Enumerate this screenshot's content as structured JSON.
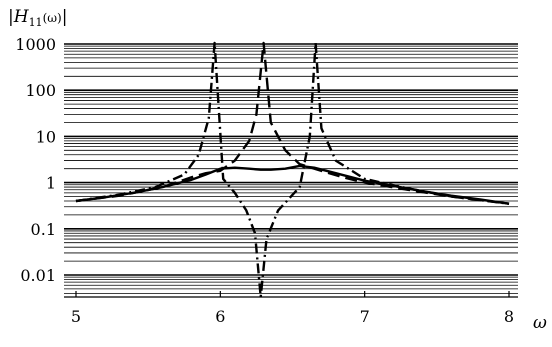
{
  "chart_data": {
    "type": "line",
    "title": "",
    "ylabel": "|H11(ω)|",
    "ylabel_parts": {
      "open": "|",
      "main": "H",
      "sub": "11",
      "arg": "(ω)",
      "close": "|"
    },
    "xlabel": "ω",
    "xscale": "linear",
    "yscale": "log",
    "xlim": [
      4.95,
      8.1
    ],
    "ylim": [
      0.0011,
      1800
    ],
    "grid": "horizontal log minor lines",
    "x_ticks": [
      5,
      6,
      7,
      8
    ],
    "x_tick_labels": [
      "5",
      "6",
      "7",
      "8"
    ],
    "y_ticks": [
      0.01,
      0.1,
      1,
      10,
      100,
      1000
    ],
    "y_tick_labels": [
      "0.01",
      "0.1",
      "1",
      "10",
      "100",
      "1000"
    ],
    "series": [
      {
        "style": "solid",
        "color": "#000000",
        "x": [
          5.0,
          5.2,
          5.4,
          5.6,
          5.8,
          5.9,
          6.0,
          6.1,
          6.2,
          6.28,
          6.35,
          6.45,
          6.55,
          6.65,
          6.8,
          7.0,
          7.2,
          7.4,
          7.6,
          7.8,
          8.0
        ],
        "y": [
          0.4,
          0.48,
          0.6,
          0.8,
          1.15,
          1.5,
          2.0,
          2.1,
          2.0,
          1.9,
          1.9,
          2.0,
          2.3,
          2.1,
          1.6,
          1.1,
          0.85,
          0.65,
          0.52,
          0.43,
          0.35
        ]
      },
      {
        "style": "dash",
        "color": "#000000",
        "x": [
          5.0,
          5.3,
          5.6,
          5.8,
          5.9,
          6.0,
          6.1,
          6.2,
          6.25,
          6.3,
          6.35,
          6.45,
          6.55,
          6.7,
          6.85,
          7.0,
          7.3,
          7.6,
          8.0
        ],
        "y": [
          0.4,
          0.52,
          0.8,
          1.3,
          1.6,
          1.8,
          3.0,
          8.0,
          30.0,
          1500.0,
          20.0,
          5.0,
          2.5,
          1.8,
          1.3,
          1.0,
          0.7,
          0.5,
          0.35
        ]
      },
      {
        "style": "dashdot",
        "color": "#000000",
        "x": [
          5.0,
          5.3,
          5.55,
          5.75,
          5.85,
          5.92,
          5.96,
          6.02,
          6.1,
          6.18,
          6.24,
          6.28,
          6.32,
          6.4,
          6.55,
          6.62,
          6.66,
          6.7,
          6.8,
          7.0,
          7.3,
          7.6,
          8.0
        ],
        "y": [
          0.4,
          0.55,
          0.8,
          1.5,
          4.0,
          25.0,
          1500.0,
          1.2,
          0.6,
          0.25,
          0.08,
          0.002,
          0.06,
          0.25,
          0.8,
          10.0,
          1500.0,
          15.0,
          3.0,
          1.2,
          0.75,
          0.5,
          0.35
        ]
      }
    ]
  }
}
